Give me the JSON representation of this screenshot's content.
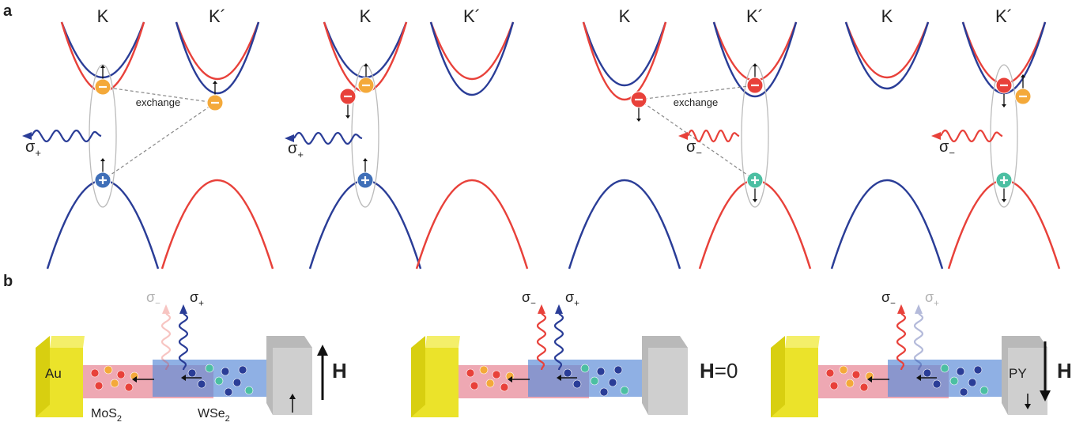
{
  "panel_a": {
    "label": "a",
    "diagrams": [
      {
        "valleys": [
          "K",
          "K´"
        ],
        "exchange": "exchange",
        "emission": {
          "symbol": "σ",
          "polarization": "+"
        }
      },
      {
        "valleys": [
          "K",
          "K´"
        ],
        "emission": {
          "symbol": "σ",
          "polarization": "+"
        }
      },
      {
        "valleys": [
          "K",
          "K´"
        ],
        "exchange": "exchange",
        "emission": {
          "symbol": "σ",
          "polarization": "−"
        }
      },
      {
        "valleys": [
          "K",
          "K´"
        ],
        "emission": {
          "symbol": "σ",
          "polarization": "−"
        }
      }
    ]
  },
  "panel_b": {
    "label": "b",
    "devices": [
      {
        "emissions": [
          {
            "symbol": "σ",
            "polarization": "−"
          },
          {
            "symbol": "σ",
            "polarization": "+"
          }
        ],
        "electrode_left": "Au",
        "layer_left": {
          "name": "MoS",
          "subscript": "2"
        },
        "layer_right": {
          "name": "WSe",
          "subscript": "2"
        },
        "field": {
          "symbol": "H"
        }
      },
      {
        "emissions": [
          {
            "symbol": "σ",
            "polarization": "−"
          },
          {
            "symbol": "σ",
            "polarization": "+"
          }
        ],
        "field": {
          "symbol": "H",
          "value": "=0"
        }
      },
      {
        "emissions": [
          {
            "symbol": "σ",
            "polarization": "−"
          },
          {
            "symbol": "σ",
            "polarization": "+"
          }
        ],
        "electrode_right": "PY",
        "field": {
          "symbol": "H"
        }
      }
    ]
  }
}
